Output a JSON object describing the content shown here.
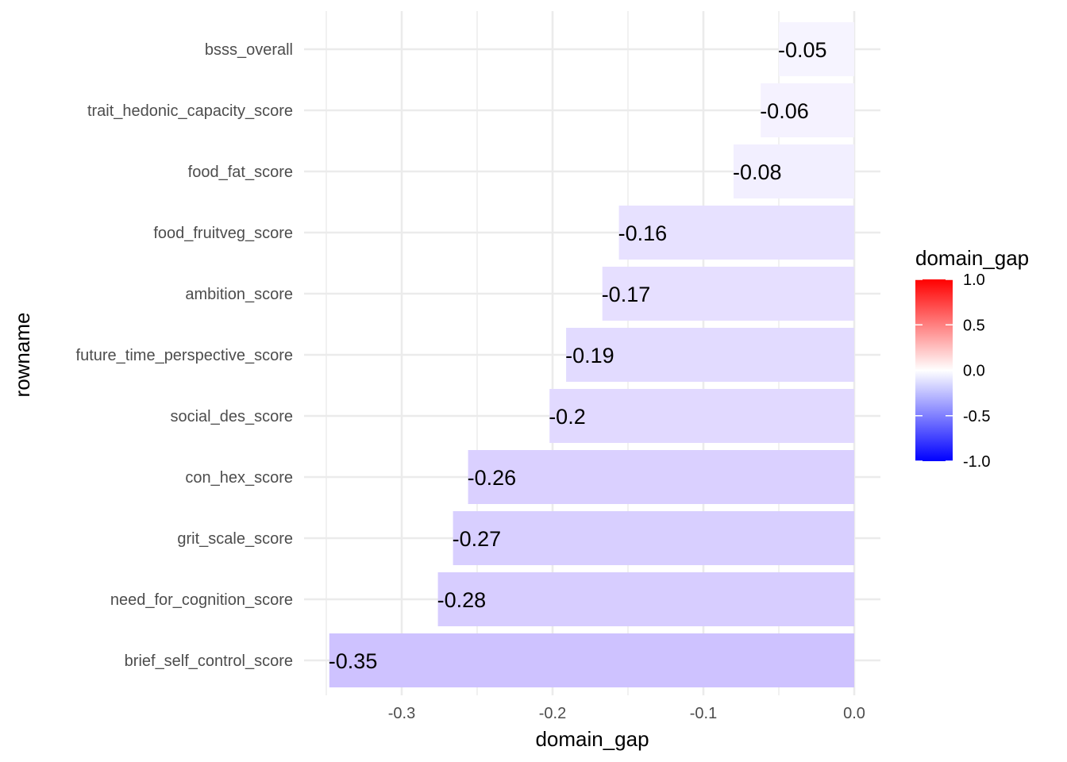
{
  "chart_data": {
    "type": "bar",
    "orientation": "horizontal",
    "categories": [
      "bsss_overall",
      "trait_hedonic_capacity_score",
      "food_fat_score",
      "food_fruitveg_score",
      "ambition_score",
      "future_time_perspective_score",
      "social_des_score",
      "con_hex_score",
      "grit_scale_score",
      "need_for_cognition_score",
      "brief_self_control_score"
    ],
    "values": [
      -0.05,
      -0.062,
      -0.08,
      -0.156,
      -0.167,
      -0.191,
      -0.202,
      -0.256,
      -0.266,
      -0.276,
      -0.348
    ],
    "data_labels": [
      "-0.05",
      "-0.06",
      "-0.08",
      "-0.16",
      "-0.17",
      "-0.19",
      "-0.2",
      "-0.26",
      "-0.27",
      "-0.28",
      "-0.35"
    ],
    "xlabel": "domain_gap",
    "ylabel": "rowname",
    "xlim": [
      -0.35,
      0.0
    ],
    "x_ticks": [
      -0.3,
      -0.2,
      -0.1,
      0.0
    ],
    "x_tick_labels": [
      "-0.3",
      "-0.2",
      "-0.1",
      "0.0"
    ],
    "grid": true,
    "fill_scale": {
      "title": "domain_gap",
      "limits": [
        -1.0,
        1.0
      ],
      "breaks": [
        1.0,
        0.5,
        0.0,
        -0.5,
        -1.0
      ],
      "break_labels": [
        "1.0",
        "0.5",
        "0.0",
        "-0.5",
        "-1.0"
      ],
      "low_color": "#0000FF",
      "mid_color": "#FFFFFF",
      "high_color": "#FF0000"
    },
    "legend_position": "right"
  }
}
